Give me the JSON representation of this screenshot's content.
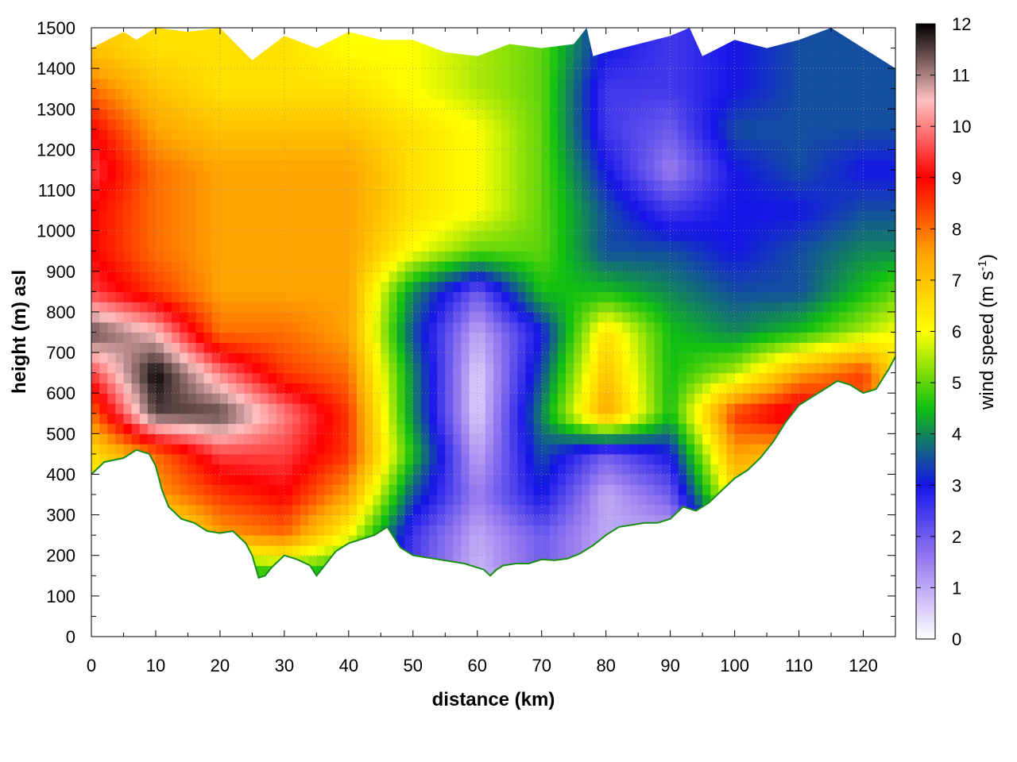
{
  "chart_data": {
    "type": "heatmap",
    "title": "",
    "xlabel": "distance (km)",
    "ylabel": "height (m) asl",
    "xlim": [
      0,
      125
    ],
    "ylim": [
      0,
      1500
    ],
    "xticks": [
      0,
      10,
      20,
      30,
      40,
      50,
      60,
      70,
      80,
      90,
      100,
      110,
      120
    ],
    "yticks": [
      0,
      100,
      200,
      300,
      400,
      500,
      600,
      700,
      800,
      900,
      1000,
      1100,
      1200,
      1300,
      1400,
      1500
    ],
    "grid": true,
    "colorbar": {
      "label_main": "wind speed (m s",
      "label_sup": "-1",
      "label_end": ")",
      "range": [
        0,
        12
      ],
      "ticks": [
        0,
        1,
        2,
        3,
        4,
        5,
        6,
        7,
        8,
        9,
        10,
        11,
        12
      ],
      "colors": [
        "#ffffff",
        "#9b7ff0",
        "#1515e8",
        "#10c010",
        "#ffff00",
        "#ffa500",
        "#ff0000",
        "#ffc0c0",
        "#000000"
      ]
    },
    "terrain_height": {
      "x": [
        0,
        2,
        5,
        7,
        9,
        10,
        11,
        12,
        14,
        16,
        18,
        20,
        22,
        24,
        25,
        26,
        27,
        28,
        30,
        32,
        34,
        35,
        36,
        38,
        40,
        42,
        44,
        46,
        48,
        50,
        52,
        54,
        56,
        58,
        60,
        61,
        62,
        63,
        64,
        66,
        68,
        70,
        72,
        74,
        76,
        78,
        80,
        82,
        84,
        86,
        88,
        90,
        92,
        94,
        96,
        98,
        100,
        102,
        104,
        106,
        108,
        110,
        112,
        114,
        116,
        118,
        120,
        122,
        124,
        125
      ],
      "y": [
        400,
        430,
        440,
        460,
        450,
        420,
        360,
        320,
        290,
        280,
        260,
        255,
        260,
        230,
        200,
        145,
        150,
        170,
        200,
        190,
        175,
        150,
        170,
        210,
        230,
        240,
        250,
        270,
        220,
        200,
        195,
        190,
        185,
        180,
        170,
        165,
        150,
        165,
        175,
        180,
        180,
        190,
        188,
        192,
        205,
        225,
        250,
        270,
        275,
        280,
        280,
        290,
        320,
        310,
        330,
        360,
        390,
        410,
        440,
        480,
        530,
        570,
        590,
        610,
        630,
        620,
        600,
        610,
        660,
        690
      ]
    },
    "top_height": {
      "x": [
        0,
        5,
        7,
        10,
        15,
        20,
        25,
        30,
        35,
        40,
        45,
        50,
        55,
        60,
        65,
        70,
        75,
        77,
        78,
        80,
        85,
        90,
        93,
        95,
        100,
        105,
        110,
        115,
        120,
        125
      ],
      "y": [
        1450,
        1490,
        1470,
        1500,
        1490,
        1500,
        1420,
        1480,
        1450,
        1490,
        1470,
        1470,
        1440,
        1430,
        1460,
        1450,
        1460,
        1500,
        1430,
        1440,
        1460,
        1480,
        1500,
        1430,
        1470,
        1450,
        1470,
        1500,
        1450,
        1400
      ]
    },
    "speed_grid": {
      "x": [
        0,
        10,
        20,
        30,
        40,
        50,
        60,
        70,
        80,
        90,
        100,
        110,
        120,
        125
      ],
      "y": [
        150,
        250,
        350,
        450,
        550,
        650,
        750,
        850,
        950,
        1050,
        1150,
        1250,
        1350,
        1450,
        1500
      ],
      "z": [
        [
          3.0,
          3.2,
          4.0,
          4.5,
          4.0,
          2.5,
          0.8,
          2.0,
          1.0,
          1.0,
          2.5,
          3.5,
          4.0,
          4.0
        ],
        [
          5.0,
          5.5,
          7.5,
          8.0,
          6.0,
          2.5,
          1.0,
          2.0,
          1.0,
          1.0,
          4.0,
          5.0,
          5.0,
          5.0
        ],
        [
          6.0,
          7.5,
          8.5,
          9.0,
          7.5,
          3.5,
          1.5,
          3.0,
          1.0,
          2.0,
          6.5,
          5.5,
          5.5,
          5.5
        ],
        [
          6.5,
          8.0,
          9.5,
          9.5,
          8.5,
          4.5,
          1.0,
          3.5,
          2.0,
          3.0,
          7.5,
          7.0,
          6.5,
          6.5
        ],
        [
          8.0,
          11.5,
          11.5,
          10.0,
          8.5,
          4.0,
          0.5,
          4.0,
          7.5,
          4.5,
          8.5,
          9.5,
          8.0,
          6.5
        ],
        [
          9.5,
          12.0,
          10.0,
          8.5,
          8.0,
          4.0,
          0.5,
          3.5,
          7.0,
          4.5,
          5.5,
          7.5,
          8.5,
          6.5
        ],
        [
          11.5,
          10.5,
          8.0,
          8.0,
          7.5,
          3.5,
          1.0,
          3.0,
          6.5,
          4.5,
          4.0,
          4.5,
          5.5,
          6.0
        ],
        [
          9.5,
          8.5,
          7.5,
          7.5,
          7.5,
          4.0,
          2.0,
          4.5,
          4.5,
          4.0,
          3.5,
          3.5,
          4.5,
          5.0
        ],
        [
          9.0,
          8.0,
          7.5,
          7.5,
          7.5,
          6.0,
          5.0,
          5.0,
          3.5,
          3.5,
          3.0,
          3.5,
          4.0,
          4.0
        ],
        [
          9.0,
          8.0,
          7.5,
          7.5,
          7.5,
          6.5,
          6.0,
          5.0,
          3.5,
          2.5,
          3.0,
          3.0,
          3.5,
          3.5
        ],
        [
          9.5,
          8.0,
          7.5,
          7.5,
          7.5,
          6.5,
          6.0,
          5.0,
          3.0,
          1.5,
          3.0,
          3.5,
          3.0,
          3.0
        ],
        [
          9.0,
          7.5,
          7.0,
          7.0,
          7.0,
          6.5,
          6.0,
          5.0,
          2.5,
          2.0,
          3.5,
          3.5,
          3.5,
          3.5
        ],
        [
          8.0,
          7.0,
          6.5,
          6.5,
          6.5,
          6.0,
          5.5,
          5.0,
          2.5,
          2.5,
          3.0,
          3.5,
          3.5,
          3.5
        ],
        [
          7.0,
          6.5,
          6.5,
          6.5,
          6.0,
          6.0,
          5.5,
          5.0,
          3.0,
          2.5,
          3.0,
          3.5,
          3.5,
          3.5
        ],
        [
          7.0,
          6.5,
          6.5,
          6.5,
          6.0,
          6.0,
          5.5,
          5.0,
          3.0,
          2.5,
          3.0,
          3.5,
          3.5,
          3.5
        ]
      ]
    }
  }
}
